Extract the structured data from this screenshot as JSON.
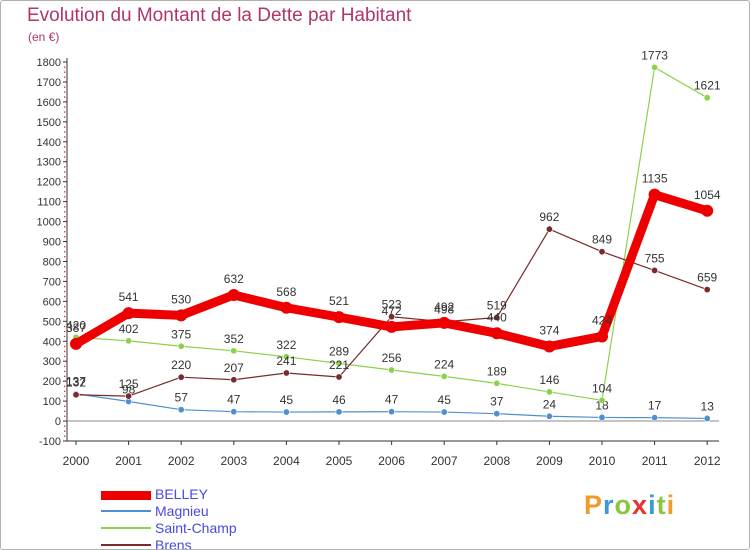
{
  "chart_data": {
    "type": "line",
    "title": "Evolution du Montant de la Dette par Habitant",
    "subtitle": "(en €)",
    "x": [
      "2000",
      "2001",
      "2002",
      "2003",
      "2004",
      "2005",
      "2006",
      "2007",
      "2008",
      "2009",
      "2010",
      "2011",
      "2012"
    ],
    "ylim": [
      -100,
      1800
    ],
    "yticks": [
      -100,
      0,
      100,
      200,
      300,
      400,
      500,
      600,
      700,
      800,
      900,
      1000,
      1100,
      1200,
      1300,
      1400,
      1500,
      1600,
      1700,
      1800
    ],
    "grid": false,
    "legend_position": "bottom-left",
    "series": [
      {
        "name": "BELLEY",
        "color": "#ee0000",
        "values": [
          387,
          541,
          530,
          632,
          568,
          521,
          472,
          492,
          440,
          374,
          424,
          1135,
          1054
        ]
      },
      {
        "name": "Magnieu",
        "color": "#4f8fd0",
        "values": [
          137,
          98,
          57,
          47,
          45,
          46,
          47,
          45,
          37,
          24,
          18,
          17,
          13
        ]
      },
      {
        "name": "Saint-Champ",
        "color": "#8bd24b",
        "values": [
          420,
          402,
          375,
          352,
          322,
          289,
          256,
          224,
          189,
          146,
          104,
          1773,
          1621
        ]
      },
      {
        "name": "Brens",
        "color": "#7a2a2a",
        "values": [
          132,
          125,
          220,
          207,
          241,
          221,
          523,
          498,
          519,
          962,
          849,
          755,
          659
        ]
      }
    ]
  },
  "logo": {
    "letters": [
      {
        "ch": "P",
        "color": "#f29a2e"
      },
      {
        "ch": "r",
        "color": "#3a9ad9"
      },
      {
        "ch": "o",
        "color": "#8bc53f"
      },
      {
        "ch": "x",
        "color": "#e8322f"
      },
      {
        "ch": "i",
        "color": "#3a9ad9"
      },
      {
        "ch": "t",
        "color": "#8bc53f"
      },
      {
        "ch": "i",
        "color": "#f29a2e"
      }
    ]
  }
}
